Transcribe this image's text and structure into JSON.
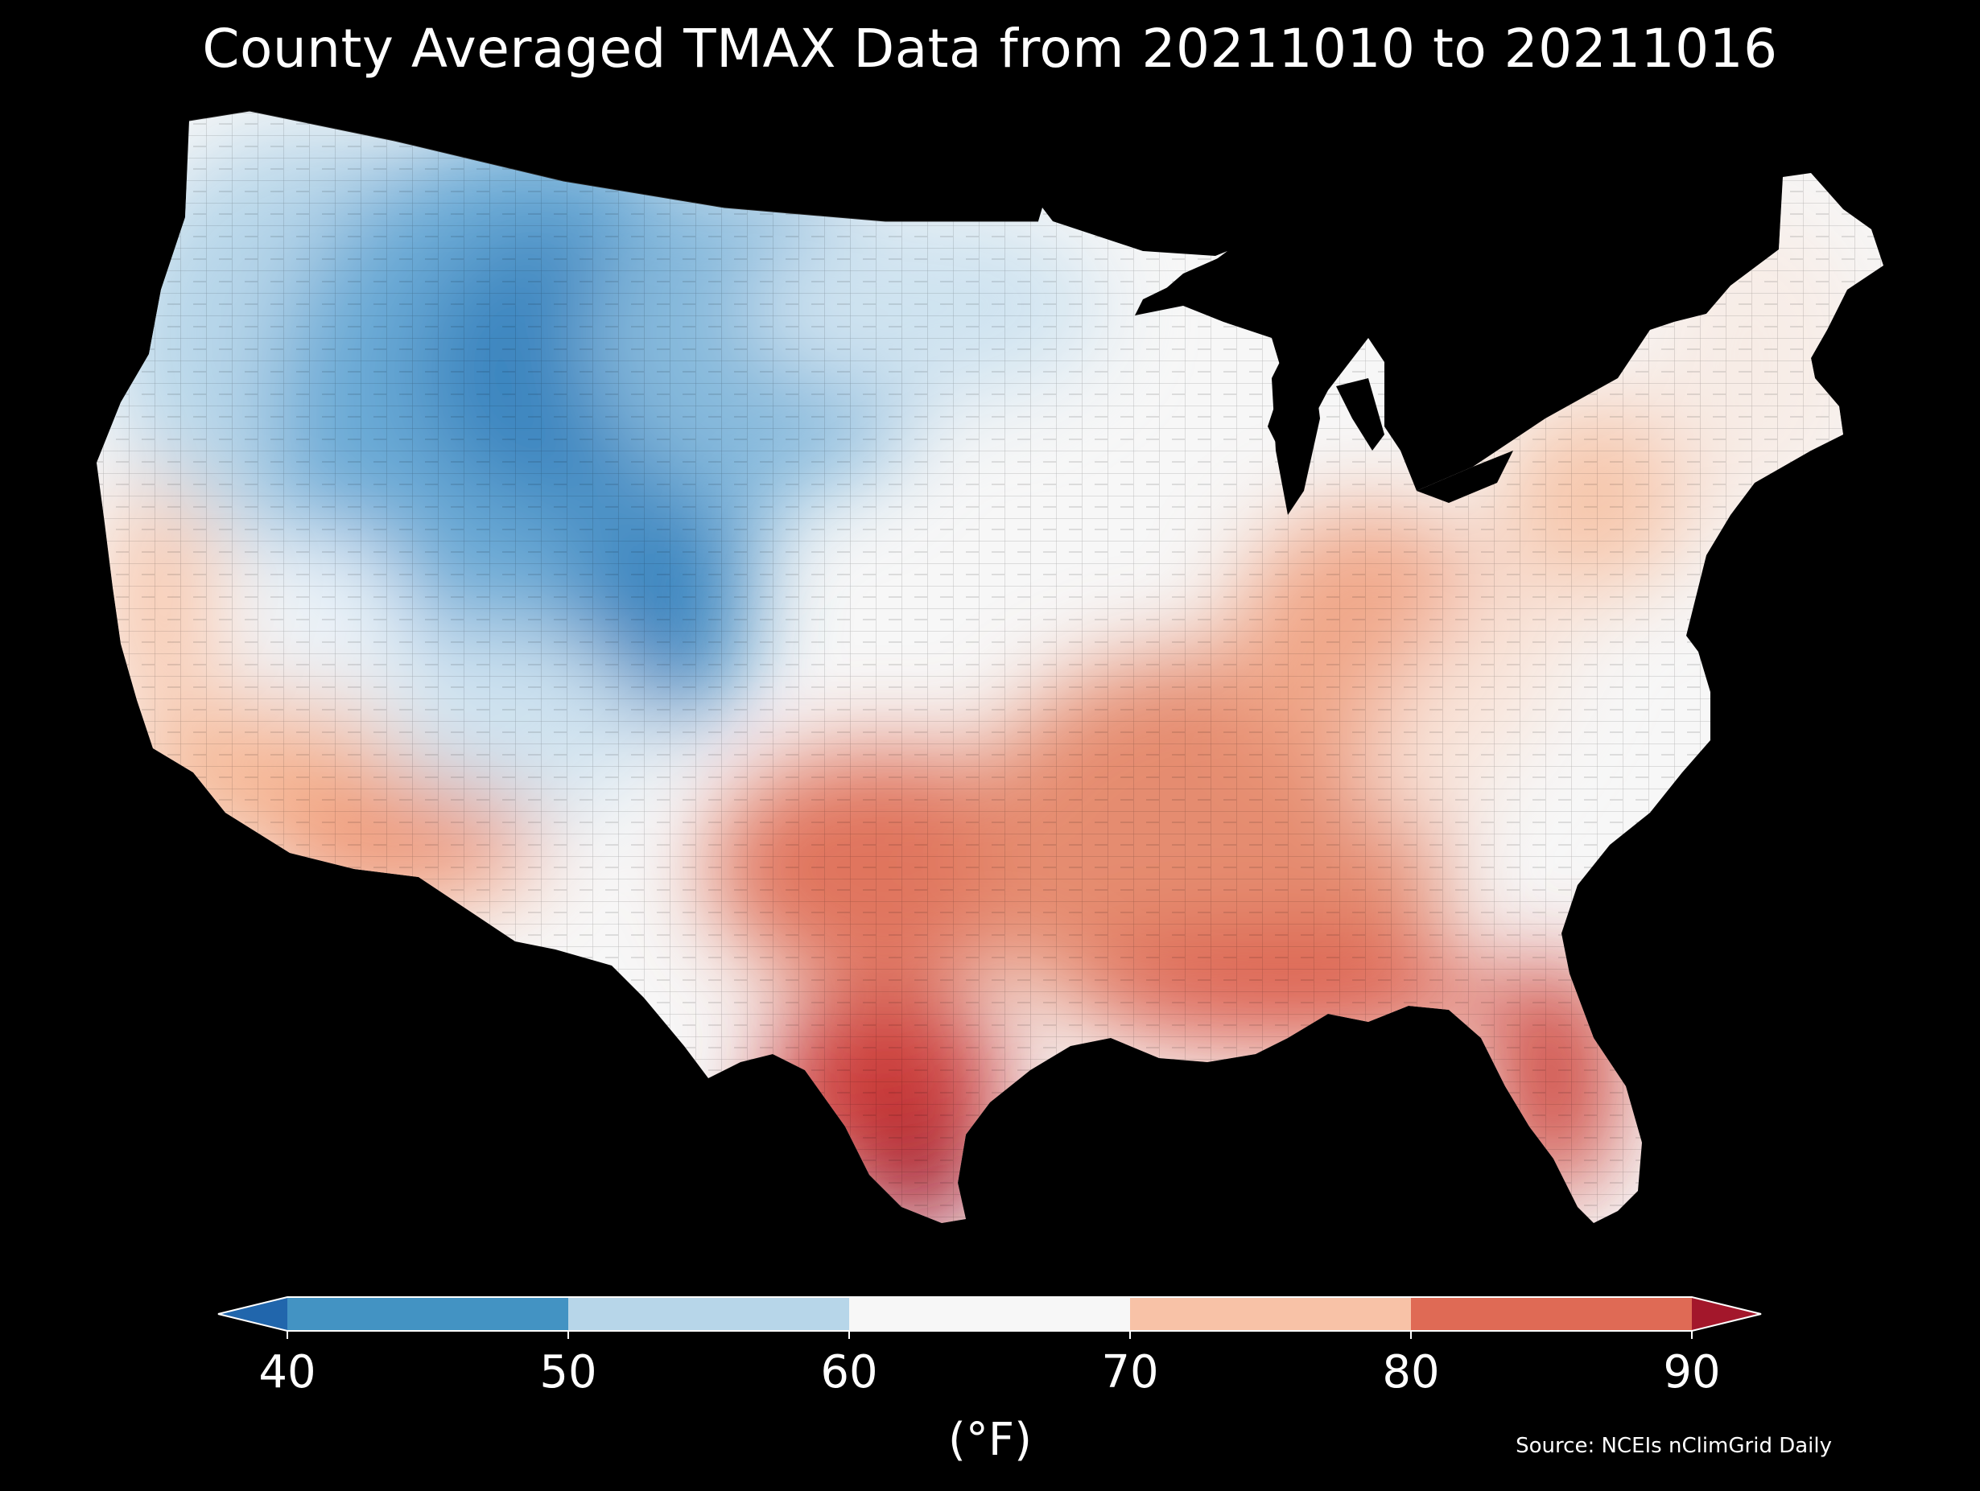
{
  "title": "County Averaged TMAX Data from 20211010 to 20211016",
  "source": "Source: NCEIs nClimGrid Daily",
  "colorbar": {
    "label": "(°F)",
    "ticks": [
      "40",
      "50",
      "60",
      "70",
      "80",
      "90"
    ],
    "bins": [
      {
        "range": "<40",
        "color": "#2166ac"
      },
      {
        "range": "40-50",
        "color": "#4393c3"
      },
      {
        "range": "50-60",
        "color": "#b7d6e9"
      },
      {
        "range": "60-70",
        "color": "#f7f7f7"
      },
      {
        "range": "70-80",
        "color": "#f8c2a7"
      },
      {
        "range": "80-90",
        "color": "#df6a55"
      },
      {
        "range": ">90",
        "color": "#a3172b"
      }
    ]
  },
  "map": {
    "region": "Contiguous United States",
    "level": "county",
    "variable": "TMAX",
    "cold_color": "#2166ac",
    "hot_color": "#b2182b",
    "background": "#000000"
  }
}
